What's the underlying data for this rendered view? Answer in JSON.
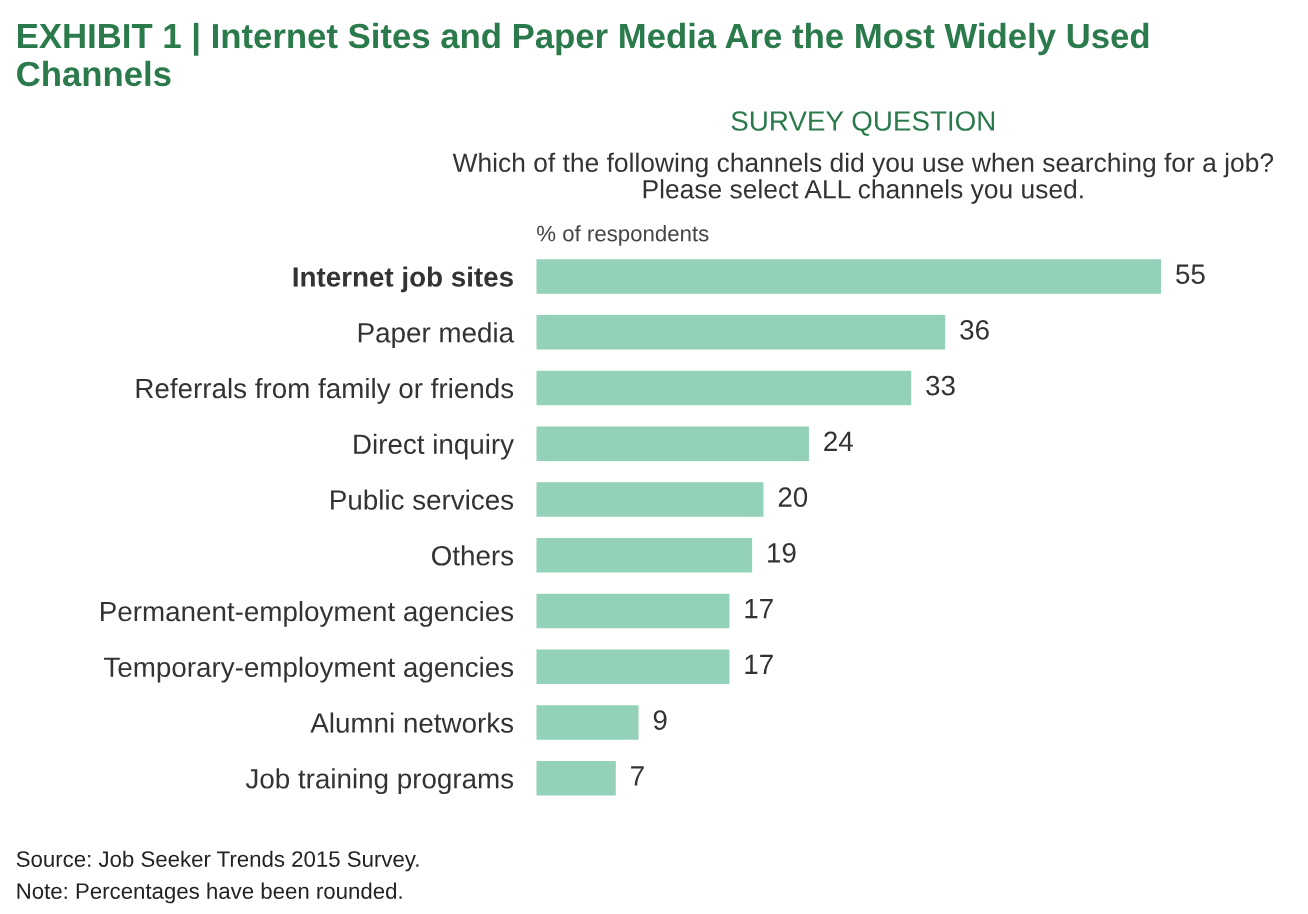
{
  "chart_data": {
    "type": "bar",
    "orientation": "horizontal",
    "title": "EXHIBIT 1 | Internet Sites and Paper Media Are the Most Widely Used Channels",
    "subtitle": "SURVEY QUESTION",
    "xlabel": "% of respondents",
    "categories": [
      "Internet job sites",
      "Paper media",
      "Referrals from family or friends",
      "Direct inquiry",
      "Public services",
      "Others",
      "Permanent-employment agencies",
      "Temporary-employment agencies",
      "Alumni networks",
      "Job training programs"
    ],
    "values": [
      55,
      36,
      33,
      24,
      20,
      19,
      17,
      17,
      9,
      7
    ],
    "color": "#93d1b8",
    "data_labels": true,
    "grid": false,
    "legend": false,
    "annotations": [
      "Which of the following channels did you use when searching for a job?\nPlease select ALL channels you used.",
      "Source: Job Seeker Trends 2015 Survey.",
      "Note: Percentages have been rounded."
    ]
  }
}
